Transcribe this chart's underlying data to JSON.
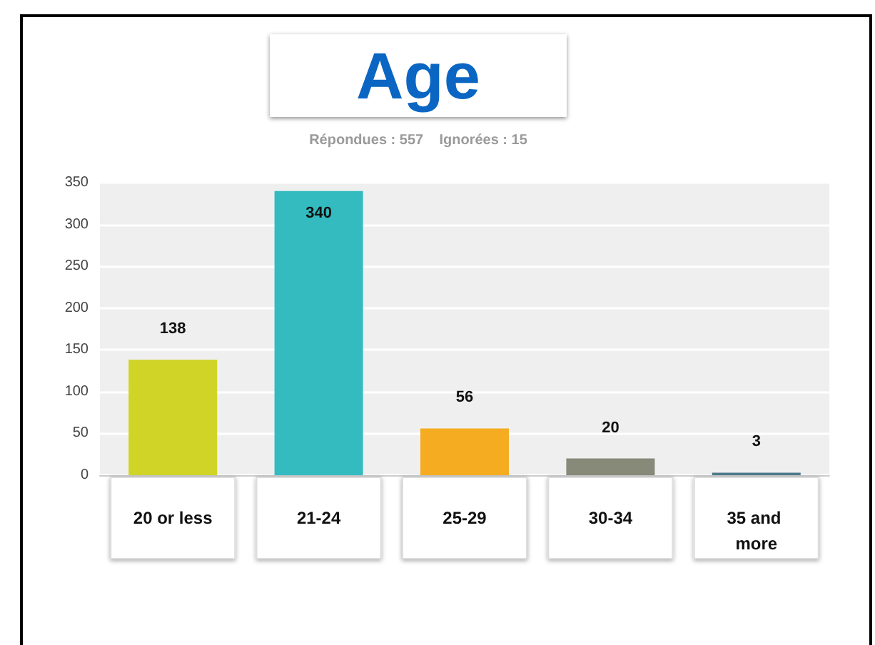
{
  "chart_data": {
    "type": "bar",
    "title": "Age",
    "subtitle": "Répondues : 557    Ignorées : 15",
    "categories": [
      "20 or less",
      "21-24",
      "25-29",
      "30-34",
      "35 and more"
    ],
    "values": [
      138,
      340,
      56,
      20,
      3
    ],
    "colors": [
      "#cfd427",
      "#33bbbf",
      "#f6ac20",
      "#878979",
      "#4d7a8a"
    ],
    "ylim": [
      0,
      350
    ],
    "yticks": [
      0,
      50,
      100,
      150,
      200,
      250,
      300,
      350
    ],
    "grid": "y",
    "data_labels": true
  }
}
